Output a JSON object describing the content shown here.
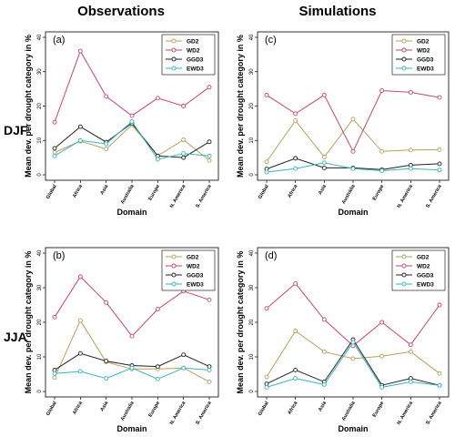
{
  "figure": {
    "col_titles": [
      "Observations",
      "Simulations"
    ],
    "row_labels": [
      "DJF",
      "JJA"
    ],
    "xlabel": "Domain",
    "ylabel": "Mean dev. per drought category in %"
  },
  "colors": {
    "GD2": "#b5a05e",
    "WD2": "#c2476e",
    "GGD3": "#222222",
    "EWD3": "#3ab3bd"
  },
  "chart_data": [
    {
      "type": "line",
      "panel": "(a)",
      "categories": [
        "Global",
        "Africa",
        "Asia",
        "Australia",
        "Europe",
        "N. America",
        "S. America"
      ],
      "ylim": [
        0,
        40
      ],
      "yticks": [
        0,
        10,
        20,
        30,
        40
      ],
      "legend": [
        "GD2",
        "WD2",
        "GGD3",
        "EWD3"
      ],
      "legend_position": "top-right",
      "series": [
        {
          "name": "GD2",
          "values": [
            6.5,
            9.8,
            7.5,
            14.5,
            5.5,
            10.2,
            4.2
          ]
        },
        {
          "name": "WD2",
          "values": [
            15.3,
            36.0,
            22.8,
            17.2,
            22.3,
            20.0,
            25.5
          ]
        },
        {
          "name": "GGD3",
          "values": [
            7.7,
            14.0,
            9.5,
            15.0,
            5.5,
            5.0,
            9.6
          ]
        },
        {
          "name": "EWD3",
          "values": [
            5.5,
            10.0,
            9.0,
            15.5,
            4.5,
            6.2,
            5.5
          ]
        }
      ]
    },
    {
      "type": "line",
      "panel": "(c)",
      "categories": [
        "Global",
        "Africa",
        "Asia",
        "Australia",
        "Europe",
        "N. America",
        "S. America"
      ],
      "ylim": [
        0,
        40
      ],
      "yticks": [
        0,
        10,
        20,
        30,
        40
      ],
      "legend": [
        "GD2",
        "WD2",
        "GGD3",
        "EWD3"
      ],
      "legend_position": "top-right",
      "series": [
        {
          "name": "GD2",
          "values": [
            3.8,
            15.8,
            5.2,
            16.2,
            6.8,
            7.2,
            7.3
          ]
        },
        {
          "name": "WD2",
          "values": [
            23.2,
            17.8,
            23.2,
            6.8,
            24.5,
            24.0,
            22.5
          ]
        },
        {
          "name": "GGD3",
          "values": [
            1.7,
            4.8,
            2.0,
            2.0,
            1.5,
            2.8,
            3.2
          ]
        },
        {
          "name": "EWD3",
          "values": [
            0.8,
            1.8,
            3.5,
            1.8,
            1.2,
            1.8,
            1.4
          ]
        }
      ]
    },
    {
      "type": "line",
      "panel": "(b)",
      "categories": [
        "Global",
        "Africa",
        "Asia",
        "Australia",
        "Europe",
        "N. America",
        "S. America"
      ],
      "ylim": [
        0,
        40
      ],
      "yticks": [
        0,
        10,
        20,
        30,
        40
      ],
      "legend": [
        "GD2",
        "WD2",
        "GGD3",
        "EWD3"
      ],
      "legend_position": "top-right",
      "series": [
        {
          "name": "GD2",
          "values": [
            4.0,
            20.5,
            8.5,
            6.5,
            6.5,
            6.8,
            2.8
          ]
        },
        {
          "name": "WD2",
          "values": [
            21.5,
            33.2,
            25.7,
            16.0,
            23.8,
            29.0,
            26.5
          ]
        },
        {
          "name": "GGD3",
          "values": [
            6.2,
            11.0,
            8.8,
            7.5,
            7.2,
            10.6,
            7.2
          ]
        },
        {
          "name": "EWD3",
          "values": [
            5.2,
            5.8,
            3.8,
            6.8,
            3.6,
            6.8,
            6.2
          ]
        }
      ]
    },
    {
      "type": "line",
      "panel": "(d)",
      "categories": [
        "Global",
        "Africa",
        "Asia",
        "Australia",
        "Europe",
        "N. America",
        "S. America"
      ],
      "ylim": [
        0,
        40
      ],
      "yticks": [
        0,
        10,
        20,
        30,
        40
      ],
      "legend": [
        "GD2",
        "WD2",
        "GGD3",
        "EWD3"
      ],
      "legend_position": "top-right",
      "series": [
        {
          "name": "GD2",
          "values": [
            4.2,
            17.5,
            11.5,
            9.5,
            10.2,
            11.5,
            5.2
          ]
        },
        {
          "name": "WD2",
          "values": [
            24.0,
            31.2,
            20.8,
            13.2,
            20.0,
            13.5,
            25.0
          ]
        },
        {
          "name": "GGD3",
          "values": [
            2.2,
            6.2,
            2.8,
            15.0,
            1.8,
            3.8,
            1.8
          ]
        },
        {
          "name": "EWD3",
          "values": [
            1.2,
            3.8,
            2.0,
            14.2,
            1.2,
            2.8,
            1.8
          ]
        }
      ]
    }
  ]
}
